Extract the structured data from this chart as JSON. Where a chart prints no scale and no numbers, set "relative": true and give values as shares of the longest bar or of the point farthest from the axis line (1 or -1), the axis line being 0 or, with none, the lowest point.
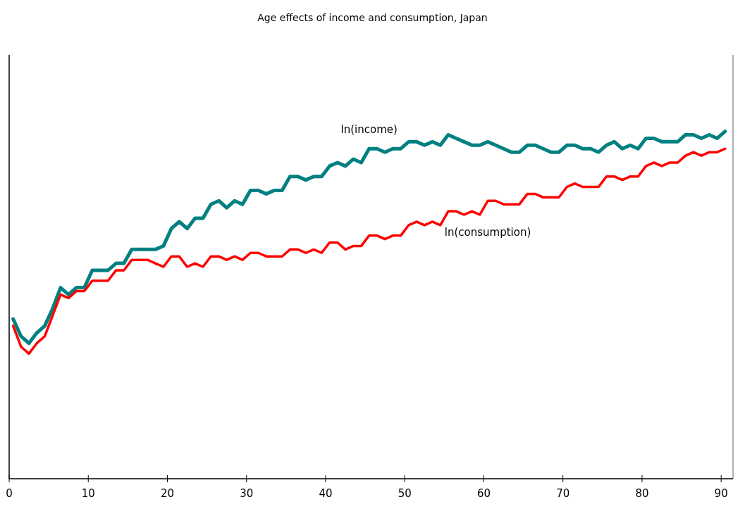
{
  "chart_data": {
    "type": "line",
    "title": "Age effects of income and consumption, Japan",
    "relative": true,
    "xlim": [
      0,
      91.5
    ],
    "xticks": [
      0,
      10,
      20,
      30,
      40,
      50,
      60,
      70,
      80,
      90
    ],
    "x": [
      0.5,
      1.5,
      2.5,
      3.5,
      4.5,
      5.5,
      6.5,
      7.5,
      8.5,
      9.5,
      10.5,
      11.5,
      12.5,
      13.5,
      14.5,
      15.5,
      16.5,
      17.5,
      18.5,
      19.5,
      20.5,
      21.5,
      22.5,
      23.5,
      24.5,
      25.5,
      26.5,
      27.5,
      28.5,
      29.5,
      30.5,
      31.5,
      32.5,
      33.5,
      34.5,
      35.5,
      36.5,
      37.5,
      38.5,
      39.5,
      40.5,
      41.5,
      42.5,
      43.5,
      44.5,
      45.5,
      46.5,
      47.5,
      48.5,
      49.5,
      50.5,
      51.5,
      52.5,
      53.5,
      54.5,
      55.5,
      56.5,
      57.5,
      58.5,
      59.5,
      60.5,
      61.5,
      62.5,
      63.5,
      64.5,
      65.5,
      66.5,
      67.5,
      68.5,
      69.5,
      70.5,
      71.5,
      72.5,
      73.5,
      74.5,
      75.5,
      76.5,
      77.5,
      78.5,
      79.5,
      80.5,
      81.5,
      82.5,
      83.5,
      84.5,
      85.5,
      86.5,
      87.5,
      88.5,
      89.5,
      90.5
    ],
    "series": [
      {
        "name": "ln(income)",
        "color": "#008080",
        "values": [
          0.46,
          0.41,
          0.39,
          0.42,
          0.44,
          0.49,
          0.55,
          0.53,
          0.55,
          0.55,
          0.6,
          0.6,
          0.6,
          0.62,
          0.62,
          0.66,
          0.66,
          0.66,
          0.66,
          0.67,
          0.72,
          0.74,
          0.72,
          0.75,
          0.75,
          0.79,
          0.8,
          0.78,
          0.8,
          0.79,
          0.83,
          0.83,
          0.82,
          0.83,
          0.83,
          0.87,
          0.87,
          0.86,
          0.87,
          0.87,
          0.9,
          0.91,
          0.9,
          0.92,
          0.91,
          0.95,
          0.95,
          0.94,
          0.95,
          0.95,
          0.97,
          0.97,
          0.96,
          0.97,
          0.96,
          0.99,
          0.98,
          0.97,
          0.96,
          0.96,
          0.97,
          0.96,
          0.95,
          0.94,
          0.94,
          0.96,
          0.96,
          0.95,
          0.94,
          0.94,
          0.96,
          0.96,
          0.95,
          0.95,
          0.94,
          0.96,
          0.97,
          0.95,
          0.96,
          0.95,
          0.98,
          0.98,
          0.97,
          0.97,
          0.97,
          0.99,
          0.99,
          0.98,
          0.99,
          0.98,
          1
        ]
      },
      {
        "name": "ln(consumption)",
        "color": "#ff0000",
        "values": [
          0.44,
          0.38,
          0.36,
          0.39,
          0.41,
          0.47,
          0.53,
          0.52,
          0.54,
          0.54,
          0.57,
          0.57,
          0.57,
          0.6,
          0.6,
          0.63,
          0.63,
          0.63,
          0.62,
          0.61,
          0.64,
          0.64,
          0.61,
          0.62,
          0.61,
          0.64,
          0.64,
          0.63,
          0.64,
          0.63,
          0.65,
          0.65,
          0.64,
          0.64,
          0.64,
          0.66,
          0.66,
          0.65,
          0.66,
          0.65,
          0.68,
          0.68,
          0.66,
          0.67,
          0.67,
          0.7,
          0.7,
          0.69,
          0.7,
          0.7,
          0.73,
          0.74,
          0.73,
          0.74,
          0.73,
          0.77,
          0.77,
          0.76,
          0.77,
          0.76,
          0.8,
          0.8,
          0.79,
          0.79,
          0.79,
          0.82,
          0.82,
          0.81,
          0.81,
          0.81,
          0.84,
          0.85,
          0.84,
          0.84,
          0.84,
          0.87,
          0.87,
          0.86,
          0.87,
          0.87,
          0.9,
          0.91,
          0.9,
          0.91,
          0.91,
          0.93,
          0.94,
          0.93,
          0.94,
          0.94,
          0.95
        ]
      }
    ]
  }
}
